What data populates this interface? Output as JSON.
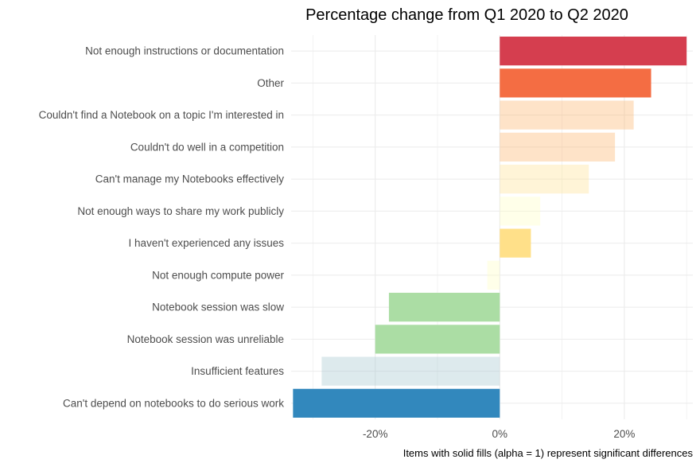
{
  "chart_data": {
    "type": "bar",
    "orientation": "horizontal",
    "title": "Percentage change from Q1 2020 to Q2 2020",
    "caption": "Items with solid fills (alpha = 1) represent significant differences",
    "xlabel": "",
    "ylabel": "",
    "xlim": [
      -0.335,
      0.31
    ],
    "x_ticks": [
      -0.2,
      0.0,
      0.2
    ],
    "x_tick_labels": [
      "-20%",
      "0%",
      "20%"
    ],
    "grid": true,
    "legend": "none",
    "categories": [
      "Not enough instructions or documentation",
      "Other",
      "Couldn't find a Notebook on a topic I'm interested in",
      "Couldn't do well in a competition",
      "Can't manage my Notebooks effectively",
      "Not enough ways to share my work publicly",
      "I haven't experienced any issues",
      "Not enough compute power",
      "Notebook session was slow",
      "Notebook session was unreliable",
      "Insufficient features",
      "Can't depend on notebooks to do serious work"
    ],
    "values": [
      0.3,
      0.243,
      0.215,
      0.185,
      0.143,
      0.065,
      0.05,
      -0.02,
      -0.178,
      -0.2,
      -0.286,
      -0.332
    ],
    "colors": [
      "#d53e4f",
      "#f46d43",
      "#fdae61",
      "#fdae61",
      "#fee08b",
      "#ffffbf",
      "#ffe089",
      "#ffffbf",
      "#abdda4",
      "#abdda4",
      "#9ec2cc",
      "#3288bd"
    ],
    "significant": [
      true,
      true,
      false,
      false,
      false,
      false,
      true,
      false,
      true,
      true,
      false,
      true
    ]
  }
}
